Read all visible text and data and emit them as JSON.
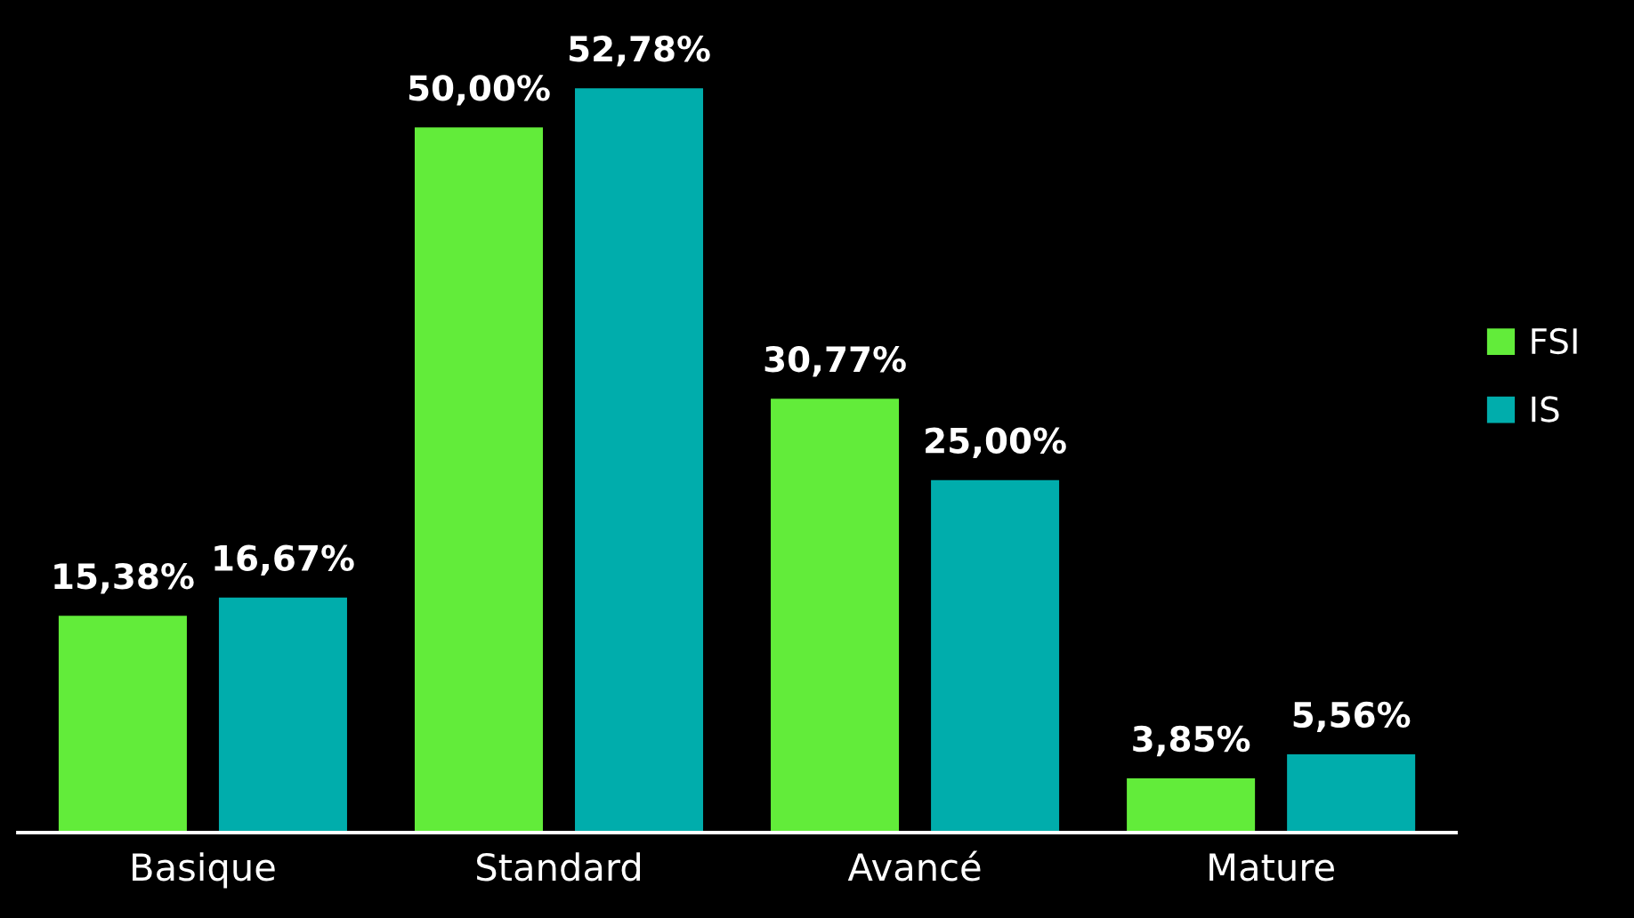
{
  "chart_data": {
    "type": "bar",
    "categories": [
      "Basique",
      "Standard",
      "Avancé",
      "Mature"
    ],
    "series": [
      {
        "name": "FSI",
        "color": "#62ec3a",
        "values": [
          15.38,
          50.0,
          30.77,
          3.85
        ],
        "value_labels": [
          "15,38%",
          "50,00%",
          "30,77%",
          "3,85%"
        ]
      },
      {
        "name": "IS",
        "color": "#00adac",
        "values": [
          16.67,
          52.78,
          25.0,
          5.56
        ],
        "value_labels": [
          "16,67%",
          "52,78%",
          "25,00%",
          "5,56%"
        ]
      }
    ],
    "legend": "right",
    "grid": false,
    "tick_labels": "x"
  }
}
